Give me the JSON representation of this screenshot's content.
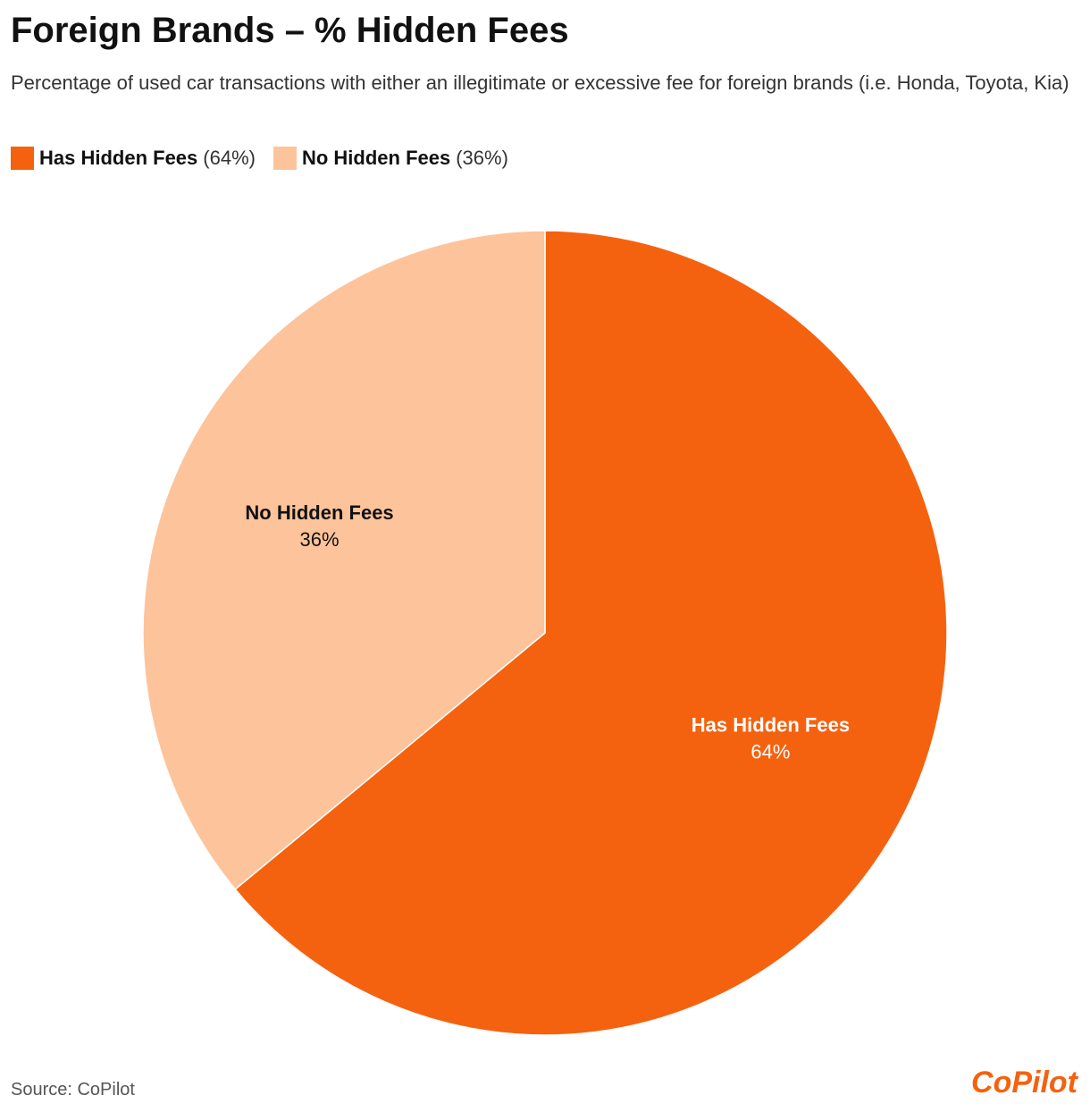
{
  "chart_data": {
    "type": "pie",
    "title": "Foreign Brands – % Hidden Fees",
    "subtitle": "Percentage of used car transactions with either an illegitimate or excessive fee for foreign brands (i.e. Honda, Toyota, Kia)",
    "categories": [
      "Has Hidden Fees",
      "No Hidden Fees"
    ],
    "values": [
      64,
      36
    ],
    "value_labels": [
      "64%",
      "36%"
    ],
    "legend_value_labels": [
      "(64%)",
      "(36%)"
    ],
    "colors": [
      "#f5620f",
      "#fdc39a"
    ],
    "label_colors": [
      "#ffffff",
      "#111111"
    ],
    "source": "Source: CoPilot",
    "logo": "CoPilot"
  }
}
